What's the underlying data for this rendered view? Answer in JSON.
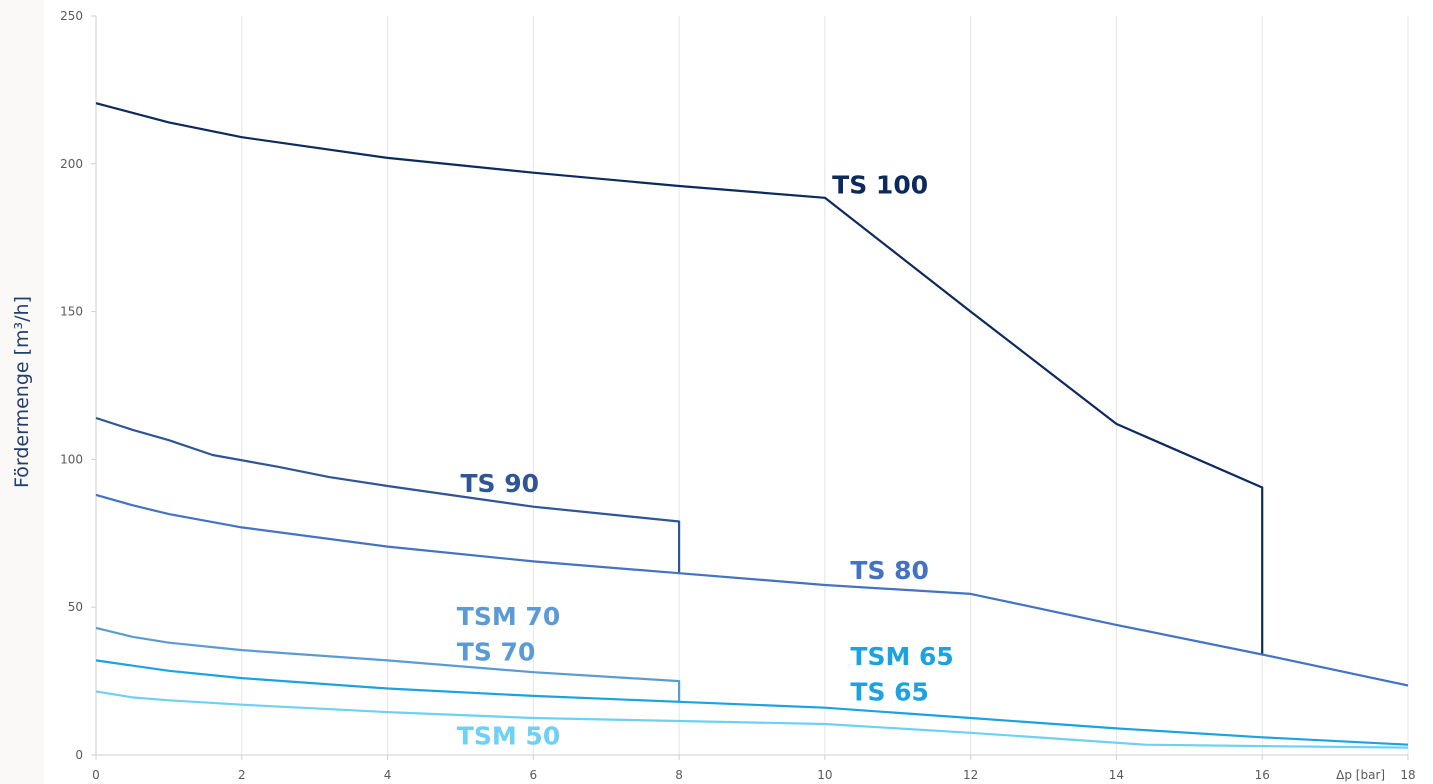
{
  "chart_data": {
    "type": "line",
    "ylabel": "Fördermenge  [m³/h]",
    "xlabel": "Δp [bar]",
    "xlim": [
      0,
      18
    ],
    "ylim": [
      0,
      250
    ],
    "x_ticks": [
      "0",
      "2",
      "4",
      "6",
      "8",
      "10",
      "12",
      "14",
      "16",
      "18"
    ],
    "y_ticks": [
      "0",
      "50",
      "100",
      "150",
      "200",
      "250"
    ],
    "grid": "vertical",
    "series": [
      {
        "name": "TS 100",
        "color": "#0d2a5e",
        "points": [
          [
            0,
            220.5
          ],
          [
            1,
            214
          ],
          [
            2,
            209
          ],
          [
            4,
            202
          ],
          [
            6,
            197
          ],
          [
            8,
            192.5
          ],
          [
            10,
            188.5
          ],
          [
            12,
            150
          ],
          [
            14,
            112
          ],
          [
            16,
            90.5
          ],
          [
            16,
            34
          ]
        ]
      },
      {
        "name": "TS 90",
        "color": "#2f5597",
        "points": [
          [
            0,
            114
          ],
          [
            0.5,
            110
          ],
          [
            1,
            106.5
          ],
          [
            1.6,
            101.5
          ],
          [
            2.5,
            97.5
          ],
          [
            3.2,
            94
          ],
          [
            4,
            91
          ],
          [
            5,
            87.5
          ],
          [
            6,
            84
          ],
          [
            8,
            79
          ],
          [
            8,
            61.5
          ]
        ]
      },
      {
        "name": "TS 80",
        "color": "#4472c4",
        "points": [
          [
            0,
            88
          ],
          [
            0.5,
            84.5
          ],
          [
            1,
            81.5
          ],
          [
            2,
            77
          ],
          [
            4,
            70.5
          ],
          [
            6,
            65.5
          ],
          [
            8,
            61.5
          ],
          [
            10,
            57.5
          ],
          [
            12,
            54.5
          ],
          [
            14,
            44
          ],
          [
            16,
            34
          ],
          [
            18,
            23.5
          ]
        ]
      },
      {
        "name": "TSM 70",
        "color": "#5b9bd5",
        "points": [
          [
            0,
            43
          ],
          [
            0.5,
            40
          ],
          [
            1,
            38
          ],
          [
            2,
            35.5
          ],
          [
            4,
            32
          ],
          [
            6,
            28
          ],
          [
            8,
            25
          ],
          [
            8,
            18
          ]
        ]
      },
      {
        "name": "TS 70",
        "color": "#5b9bd5",
        "points": []
      },
      {
        "name": "TSM 65",
        "color": "#1aa3e0",
        "points": [
          [
            0,
            32
          ],
          [
            1,
            28.5
          ],
          [
            2,
            26
          ],
          [
            4,
            22.5
          ],
          [
            6,
            20
          ],
          [
            8,
            18
          ],
          [
            10,
            16
          ],
          [
            12,
            12.5
          ],
          [
            14,
            9
          ],
          [
            16,
            6
          ],
          [
            18,
            3.5
          ]
        ]
      },
      {
        "name": "TS 65",
        "color": "#1aa3e0",
        "points": []
      },
      {
        "name": "TSM 50",
        "color": "#6ed0f5",
        "points": [
          [
            0,
            21.5
          ],
          [
            0.5,
            19.5
          ],
          [
            1,
            18.5
          ],
          [
            2,
            17
          ],
          [
            4,
            14.5
          ],
          [
            6,
            12.5
          ],
          [
            8,
            11.5
          ],
          [
            10,
            10.5
          ],
          [
            12,
            7.5
          ],
          [
            14.4,
            3.5
          ],
          [
            16,
            3
          ],
          [
            18,
            2.5
          ]
        ]
      }
    ],
    "annotations": [
      {
        "text": "TS 100",
        "x": 10.1,
        "y": 190,
        "color": "#0d2a5e"
      },
      {
        "text": "TS 90",
        "x": 5.0,
        "y": 89,
        "color": "#2f5597"
      },
      {
        "text": "TS 80",
        "x": 10.35,
        "y": 59.5,
        "color": "#4472c4"
      },
      {
        "text": "TSM 70",
        "x": 4.95,
        "y": 44,
        "color": "#5b9bd5"
      },
      {
        "text": "TS 70",
        "x": 4.95,
        "y": 32,
        "color": "#5b9bd5"
      },
      {
        "text": "TSM 65",
        "x": 10.35,
        "y": 30.5,
        "color": "#1aa3e0"
      },
      {
        "text": "TS 65",
        "x": 10.35,
        "y": 18.5,
        "color": "#1aa3e0"
      },
      {
        "text": "TSM 50",
        "x": 4.95,
        "y": 3.5,
        "color": "#6ed0f5"
      }
    ]
  }
}
